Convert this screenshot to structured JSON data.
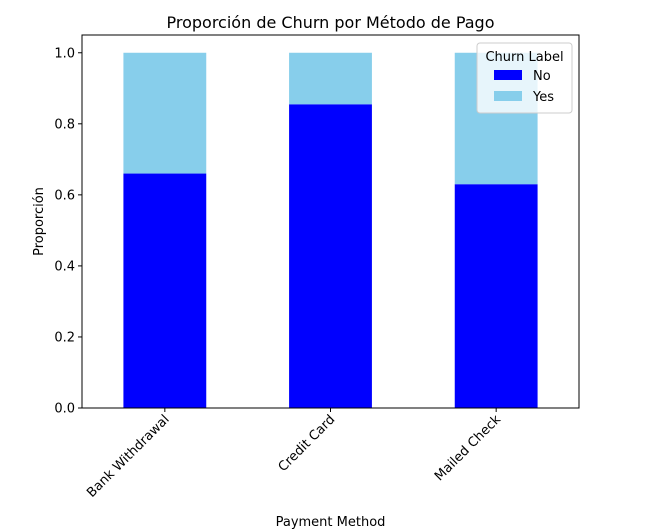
{
  "chart_data": {
    "type": "bar",
    "stacked": true,
    "title": "Proporción de Churn por Método de Pago",
    "xlabel": "Payment Method",
    "ylabel": "Proporción",
    "categories": [
      "Bank Withdrawal",
      "Credit Card",
      "Mailed Check"
    ],
    "series": [
      {
        "name": "No",
        "values": [
          0.66,
          0.855,
          0.63
        ],
        "color": "#0000ff"
      },
      {
        "name": "Yes",
        "values": [
          0.34,
          0.145,
          0.37
        ],
        "color": "#87ceeb"
      }
    ],
    "ylim": [
      0,
      1.05
    ],
    "yticks": [
      "0.0",
      "0.2",
      "0.4",
      "0.6",
      "0.8",
      "1.0"
    ],
    "grid": false,
    "legend": {
      "title": "Churn Label",
      "placement": "top-right"
    }
  }
}
